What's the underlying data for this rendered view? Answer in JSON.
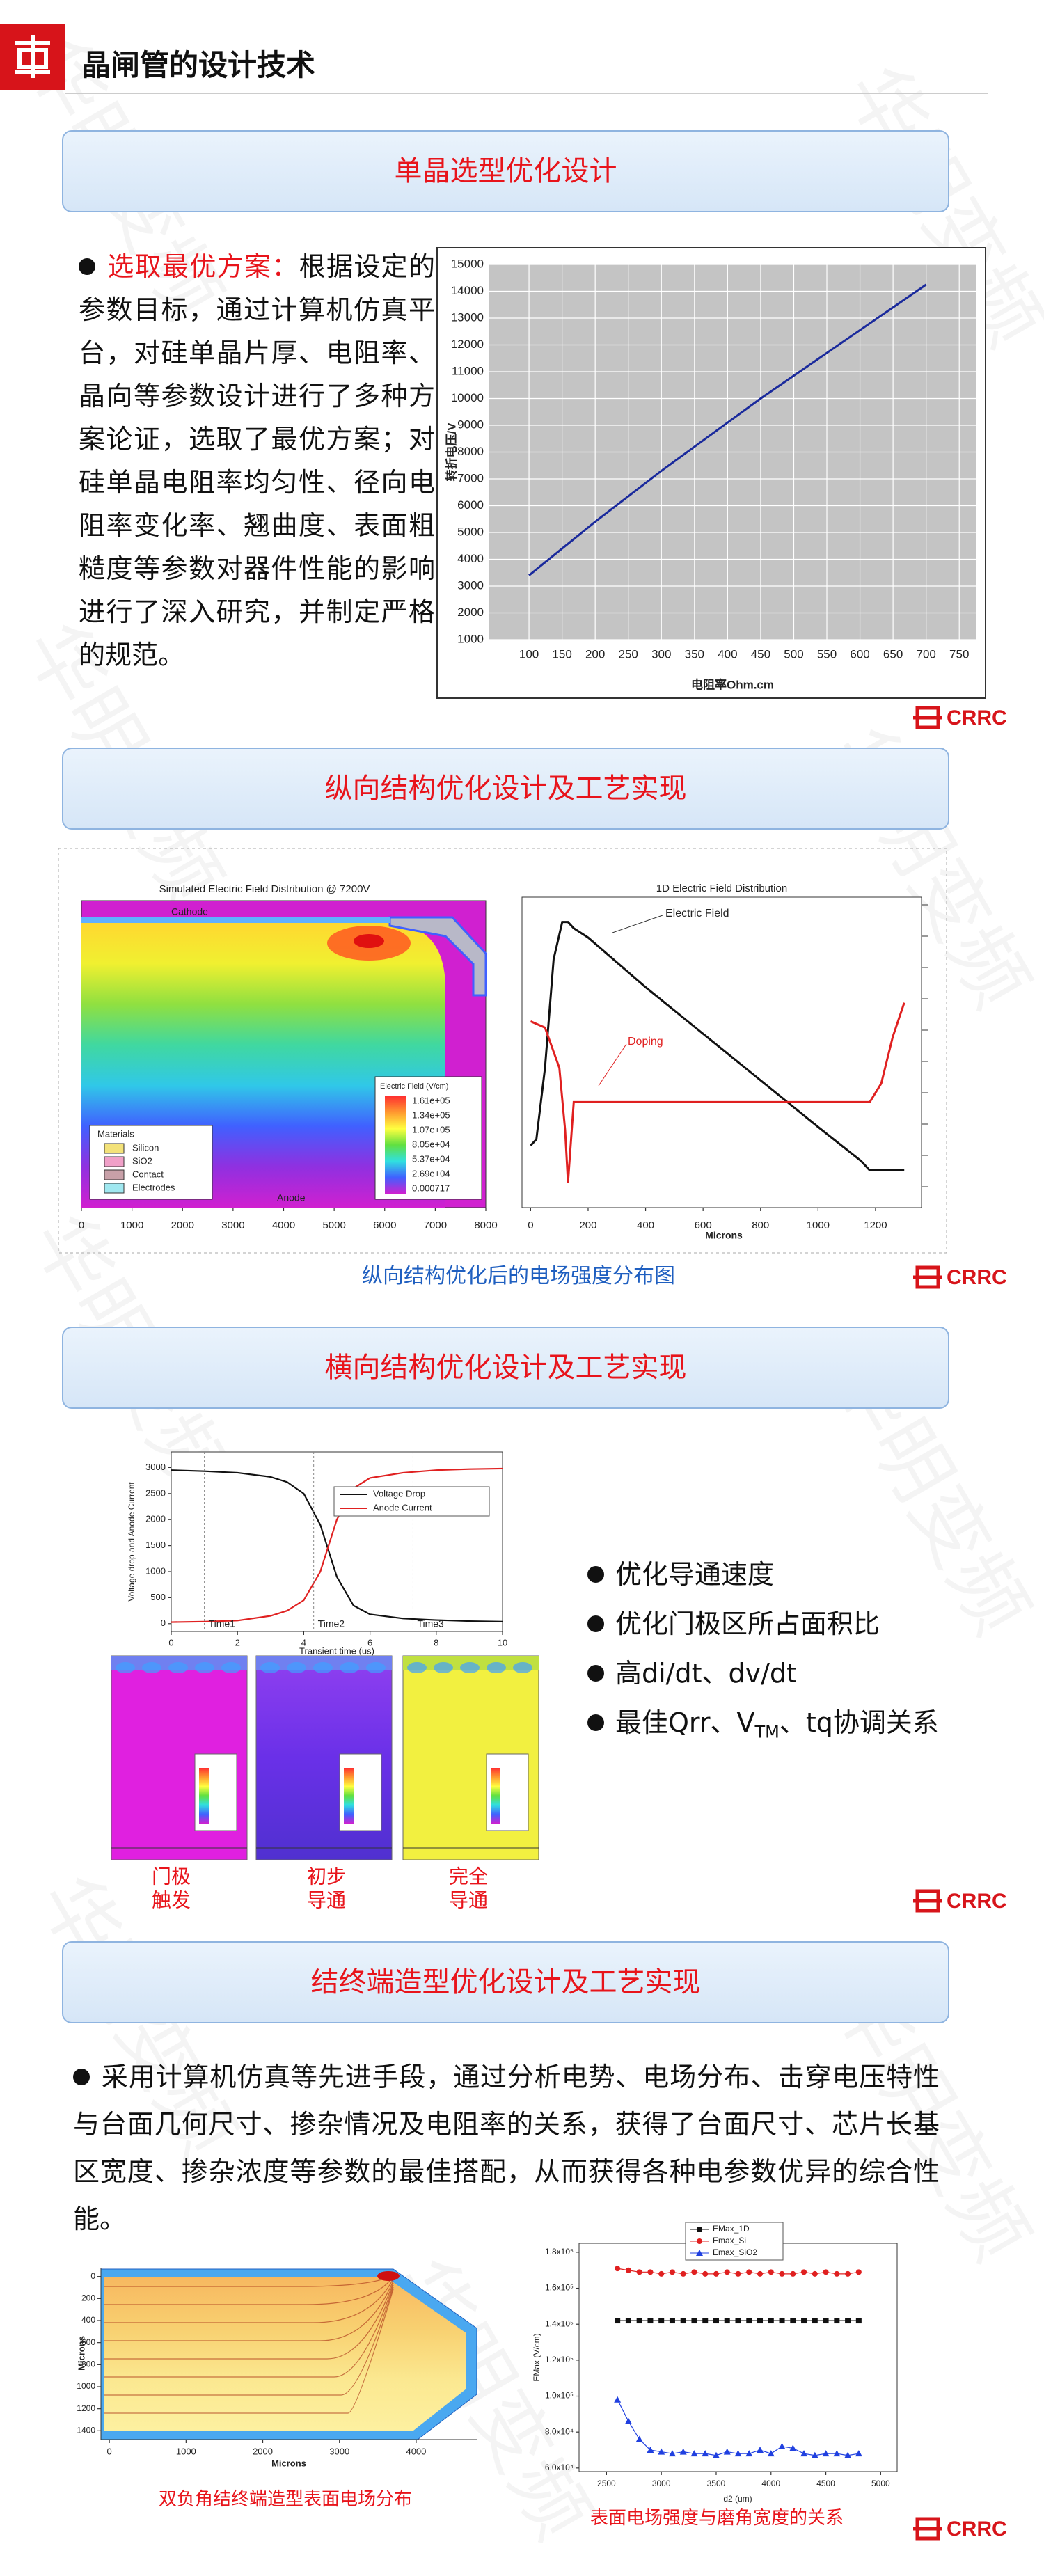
{
  "header": {
    "title": "晶闸管的设计技术"
  },
  "watermark": "华明变频",
  "logo": "CRRC",
  "sections": [
    {
      "title": "单晶选型优化设计",
      "lead": "选取最优方案：",
      "text": "根据设定的参数目标，通过计算机仿真平台，对硅单晶片厚、电阻率、晶向等参数设计进行了多种方案论证，选取了最优方案；对硅单晶电阻率均匀性、径向电阻率变化率、翘曲度、表面粗糙度等参数对器件性能的影响进行了深入研究，并制定严格的规范。"
    },
    {
      "title": "纵向结构优化设计及工艺实现",
      "caption": "纵向结构优化后的电场强度分布图"
    },
    {
      "title": "横向结构优化设计及工艺实现",
      "bullets": [
        "优化导通速度",
        "优化门极区所占面积比",
        "高di/dt、dv/dt"
      ],
      "last_bullet": {
        "before": "最佳Qrr、V",
        "sub": "TM",
        "after": "、tq协调关系"
      },
      "image_captions": [
        [
          "门极",
          "触发"
        ],
        [
          "初步",
          "导通"
        ],
        [
          "完全",
          "导通"
        ]
      ]
    },
    {
      "title": "结终端造型优化设计及工艺实现",
      "text": "采用计算机仿真等先进手段，通过分析电势、电场分布、击穿电压特性与台面几何尺寸、掺杂情况及电阻率的关系，获得了台面尺寸、芯片长基区宽度、掺杂浓度等参数的最佳搭配，从而获得各种电参数优异的综合性能。",
      "captions": [
        "双负角结终端造型表面电场分布",
        "表面电场强度与磨角宽度的关系"
      ]
    }
  ],
  "chart_data": [
    {
      "type": "line",
      "xlabel": "电阻率Ohm.cm",
      "ylabel": "转折电压/V",
      "color": "#1a2a9c",
      "grid": true,
      "x": [
        100,
        150,
        200,
        250,
        300,
        350,
        400,
        450,
        500,
        550,
        600,
        650,
        700
      ],
      "values": [
        3400,
        4400,
        5400,
        6350,
        7300,
        8200,
        9100,
        10000,
        10850,
        11700,
        12550,
        13400,
        14250
      ],
      "xlim": [
        40,
        775
      ],
      "xticks": [
        100,
        150,
        200,
        250,
        300,
        350,
        400,
        450,
        500,
        550,
        600,
        650,
        700,
        750
      ],
      "ylim": [
        1000,
        15000
      ],
      "yticks": [
        1000,
        2000,
        3000,
        4000,
        5000,
        6000,
        7000,
        8000,
        9000,
        10000,
        11000,
        12000,
        13000,
        14000,
        15000
      ]
    },
    {
      "type": "field-map",
      "title": "Simulated Electric Field Distribution @ 7200V",
      "labels": [
        "Cathode",
        "Anode"
      ],
      "legend_title": "Materials",
      "legend": [
        "Silicon",
        "SiO2",
        "Contact",
        "Electrodes"
      ],
      "legend_colors": [
        "#f3e27a",
        "#f0a0c8",
        "#c8a0a8",
        "#a0e8f0"
      ],
      "colorbar_title": "Electric Field (V/cm)",
      "colorbar_labels": [
        "1.61e+05",
        "1.34e+05",
        "1.07e+05",
        "8.05e+04",
        "5.37e+04",
        "2.69e+04",
        "0.000717"
      ],
      "colorbar_colors": [
        "#ff3030",
        "#ff9a30",
        "#ffff40",
        "#60e040",
        "#30e0e0",
        "#4060ff",
        "#d020d0"
      ],
      "xlim": [
        0,
        8000
      ],
      "xticks": [
        0,
        1000,
        2000,
        3000,
        4000,
        5000,
        6000,
        7000,
        8000
      ]
    },
    {
      "type": "line",
      "title": "1D Electric Field Distribution",
      "xlabel": "Microns",
      "series": [
        {
          "name": "Electric Field",
          "color": "#111111",
          "x": [
            0,
            20,
            50,
            80,
            110,
            130,
            150,
            200,
            400,
            600,
            800,
            1000,
            1150,
            1180,
            1250,
            1300
          ],
          "values": [
            20,
            22,
            45,
            80,
            92,
            92,
            90,
            87,
            71,
            56,
            41,
            26,
            15,
            12,
            12,
            12
          ]
        },
        {
          "name": "Doping",
          "color": "#e02020",
          "x": [
            0,
            50,
            100,
            120,
            130,
            150,
            200,
            600,
            1000,
            1180,
            1220,
            1260,
            1300
          ],
          "values": [
            60,
            58,
            45,
            25,
            8,
            34,
            34,
            34,
            34,
            34,
            40,
            55,
            66
          ]
        }
      ],
      "xlim": [
        -30,
        1360
      ],
      "xticks": [
        0,
        200,
        400,
        600,
        800,
        1000,
        1200
      ],
      "ylim": [
        0,
        100
      ]
    },
    {
      "type": "line",
      "xlabel": "Transient time (us)",
      "ylabel": "Voltage drop and Anode Current",
      "x": [
        0,
        1,
        2,
        3,
        3.5,
        4,
        4.5,
        5,
        5.5,
        6,
        7,
        8,
        9,
        10
      ],
      "series": [
        {
          "name": "Voltage Drop",
          "color": "#111111",
          "values": [
            2950,
            2930,
            2900,
            2820,
            2720,
            2500,
            1900,
            900,
            350,
            180,
            100,
            70,
            50,
            40
          ]
        },
        {
          "name": "Anode Current",
          "color": "#e02020",
          "values": [
            30,
            40,
            60,
            150,
            250,
            450,
            1000,
            2000,
            2600,
            2800,
            2900,
            2950,
            2970,
            2980
          ]
        }
      ],
      "markers": [
        {
          "label": "Time1",
          "x": 1
        },
        {
          "label": "Time2",
          "x": 4.3
        },
        {
          "label": "Time3",
          "x": 7.3
        }
      ],
      "xlim": [
        0,
        10
      ],
      "xticks": [
        0,
        2,
        4,
        6,
        8,
        10
      ],
      "ylim": [
        -150,
        3300
      ],
      "yticks": [
        0,
        500,
        1000,
        1500,
        2000,
        2500,
        3000
      ]
    },
    {
      "type": "field-map",
      "xlabel": "Microns",
      "ylabel": "Microns",
      "xlim": [
        -110,
        4790
      ],
      "xticks": [
        0,
        1000,
        2000,
        3000,
        4000
      ],
      "ylim": [
        -80,
        1480
      ],
      "yreverse": true,
      "yticks": [
        0,
        200,
        400,
        600,
        800,
        1000,
        1200,
        1400
      ]
    },
    {
      "type": "line",
      "xlabel": "d2 (um)",
      "ylabel": "EMax (V/cm)",
      "x": [
        2600,
        2700,
        2800,
        2900,
        3000,
        3100,
        3200,
        3300,
        3400,
        3500,
        3600,
        3700,
        3800,
        3900,
        4000,
        4100,
        4200,
        4300,
        4400,
        4500,
        4600,
        4700,
        4800
      ],
      "series": [
        {
          "name": "EMax_1D",
          "color": "#111111",
          "marker": "square",
          "values": [
            142000,
            142000,
            142000,
            142000,
            142000,
            142000,
            142000,
            142000,
            142000,
            142000,
            142000,
            142000,
            142000,
            142000,
            142000,
            142000,
            142000,
            142000,
            142000,
            142000,
            142000,
            142000,
            142000
          ]
        },
        {
          "name": "Emax_Si",
          "color": "#e02020",
          "marker": "circle",
          "values": [
            171000,
            170000,
            169000,
            169000,
            168000,
            169000,
            168000,
            169000,
            168000,
            168000,
            169000,
            168000,
            169000,
            168000,
            169000,
            168000,
            168000,
            169000,
            168000,
            169000,
            168000,
            168000,
            169000
          ]
        },
        {
          "name": "Emax_SiO2",
          "color": "#2040e0",
          "marker": "triangle",
          "values": [
            98000,
            86000,
            76000,
            70000,
            69000,
            68000,
            69000,
            68000,
            68000,
            67000,
            69000,
            68000,
            68000,
            70000,
            68000,
            72000,
            71000,
            68000,
            67000,
            68000,
            68000,
            67000,
            68000
          ]
        }
      ],
      "xlim": [
        2250,
        5150
      ],
      "xticks": [
        2500,
        3000,
        3500,
        4000,
        4500,
        5000
      ],
      "ylim": [
        58000,
        185000
      ],
      "yticks": [
        {
          "value": 60000,
          "label": "6.0x10⁴"
        },
        {
          "value": 80000,
          "label": "8.0x10⁴"
        },
        {
          "value": 100000,
          "label": "1.0x10⁵"
        },
        {
          "value": 120000,
          "label": "1.2x10⁵"
        },
        {
          "value": 140000,
          "label": "1.4x10⁵"
        },
        {
          "value": 160000,
          "label": "1.6x10⁵"
        },
        {
          "value": 180000,
          "label": "1.8x10⁵"
        }
      ]
    }
  ]
}
